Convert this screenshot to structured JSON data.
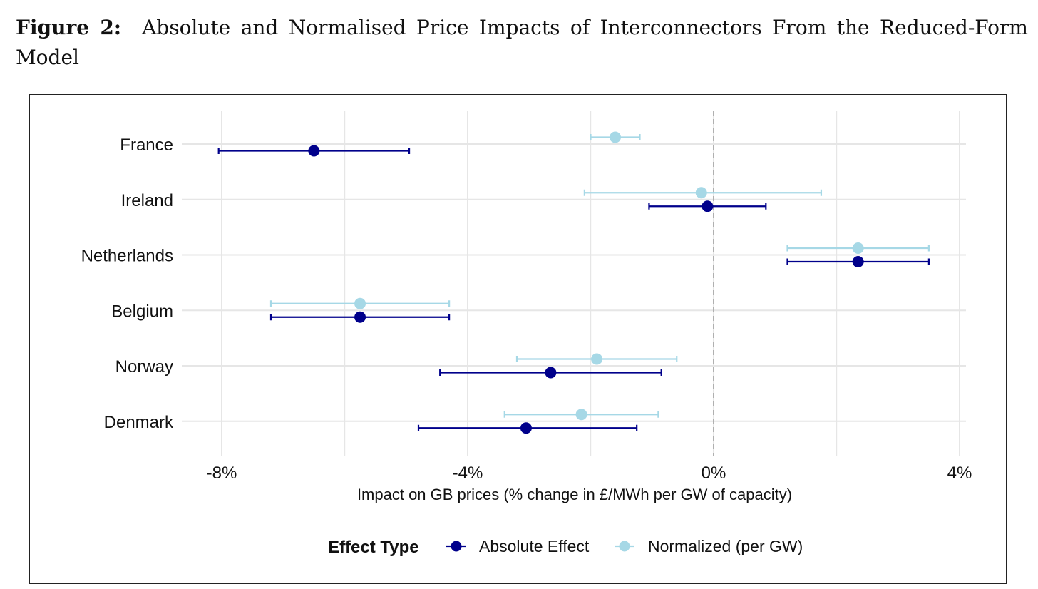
{
  "caption": {
    "label": "Figure 2:",
    "text": "Absolute and Normalised Price Impacts of Interconnectors From the Reduced-Form Model"
  },
  "colors": {
    "absolute": "#00008B",
    "normalized": "#A6D8E6",
    "grid": "#E6E6E6",
    "zero_line": "#AAAAAA"
  },
  "chart_data": {
    "type": "scatter",
    "subtype": "dot-and-whisker",
    "orientation": "horizontal",
    "title": "",
    "xlabel": "Impact on GB prices (% change in £/MWh per GW of capacity)",
    "ylabel": "",
    "xlim": [
      -8.6,
      4.1
    ],
    "x_ticks": [
      -8,
      -4,
      0,
      4
    ],
    "x_tick_labels": [
      "-8%",
      "-4%",
      "0%",
      "4%"
    ],
    "categories": [
      "France",
      "Ireland",
      "Netherlands",
      "Belgium",
      "Norway",
      "Denmark"
    ],
    "reference_line": {
      "x": 0,
      "style": "dashed"
    },
    "grid": true,
    "legend": {
      "position": "bottom",
      "title": "Effect Type"
    },
    "series": [
      {
        "name": "Absolute Effect",
        "color": "#00008B",
        "points": [
          {
            "category": "France",
            "estimate": -6.5,
            "low": -8.05,
            "high": -4.95
          },
          {
            "category": "Ireland",
            "estimate": -0.1,
            "low": -1.05,
            "high": 0.85
          },
          {
            "category": "Netherlands",
            "estimate": 2.35,
            "low": 1.2,
            "high": 3.5
          },
          {
            "category": "Belgium",
            "estimate": -5.75,
            "low": -7.2,
            "high": -4.3
          },
          {
            "category": "Norway",
            "estimate": -2.65,
            "low": -4.45,
            "high": -0.85
          },
          {
            "category": "Denmark",
            "estimate": -3.05,
            "low": -4.8,
            "high": -1.25
          }
        ]
      },
      {
        "name": "Normalized (per GW)",
        "color": "#A6D8E6",
        "points": [
          {
            "category": "France",
            "estimate": -1.6,
            "low": -2.0,
            "high": -1.2
          },
          {
            "category": "Ireland",
            "estimate": -0.2,
            "low": -2.1,
            "high": 1.75
          },
          {
            "category": "Netherlands",
            "estimate": 2.35,
            "low": 1.2,
            "high": 3.5
          },
          {
            "category": "Belgium",
            "estimate": -5.75,
            "low": -7.2,
            "high": -4.3
          },
          {
            "category": "Norway",
            "estimate": -1.9,
            "low": -3.2,
            "high": -0.6
          },
          {
            "category": "Denmark",
            "estimate": -2.15,
            "low": -3.4,
            "high": -0.9
          }
        ]
      }
    ]
  }
}
